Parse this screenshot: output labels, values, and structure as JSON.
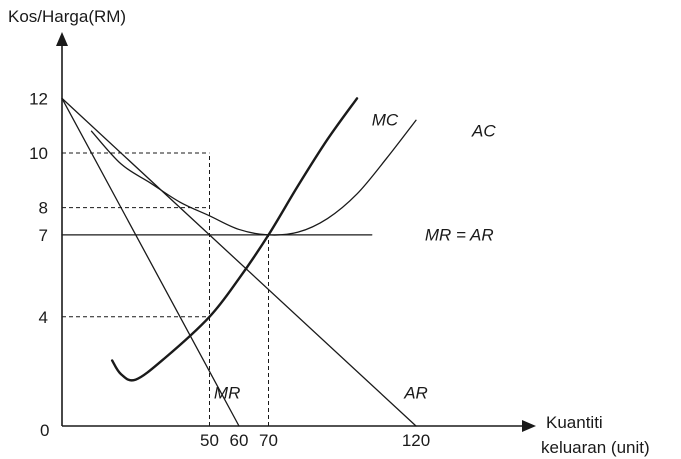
{
  "chart_data": {
    "type": "line",
    "ylabel": "Kos/Harga(RM)",
    "xlabel_lines": [
      "Kuantiti",
      "keluaran (unit)"
    ],
    "origin_label": "0",
    "xlim": [
      0,
      140
    ],
    "ylim": [
      0,
      13
    ],
    "x_ticks": [
      50,
      60,
      70,
      120
    ],
    "x_tick_labels": [
      "50",
      "60",
      "70",
      "120"
    ],
    "y_ticks": [
      4,
      7,
      8,
      10,
      12
    ],
    "y_tick_labels": [
      "4",
      "7",
      "8",
      "10",
      "12"
    ],
    "series": [
      {
        "name": "AR",
        "points": [
          [
            0,
            12
          ],
          [
            120,
            0
          ]
        ]
      },
      {
        "name": "MR",
        "points": [
          [
            0,
            12
          ],
          [
            60,
            0
          ]
        ]
      },
      {
        "name": "MR = AR",
        "points": [
          [
            0,
            7
          ],
          [
            105,
            7
          ]
        ]
      },
      {
        "name": "AC",
        "points": [
          [
            10,
            10.8
          ],
          [
            20,
            9.6
          ],
          [
            30,
            8.9
          ],
          [
            40,
            8.2
          ],
          [
            50,
            7.7
          ],
          [
            60,
            7.2
          ],
          [
            70,
            7
          ],
          [
            80,
            7.1
          ],
          [
            90,
            7.6
          ],
          [
            100,
            8.5
          ],
          [
            110,
            9.8
          ],
          [
            120,
            11.2
          ]
        ]
      },
      {
        "name": "MC",
        "points": [
          [
            17,
            2.4
          ],
          [
            20,
            1.9
          ],
          [
            25,
            1.7
          ],
          [
            35,
            2.5
          ],
          [
            50,
            4
          ],
          [
            60,
            5.4
          ],
          [
            70,
            7
          ],
          [
            80,
            8.8
          ],
          [
            90,
            10.5
          ],
          [
            100,
            12
          ]
        ]
      }
    ],
    "guide_lines": [
      {
        "from": [
          0,
          10
        ],
        "to": [
          50,
          10
        ]
      },
      {
        "from": [
          0,
          8
        ],
        "to": [
          50,
          8
        ]
      },
      {
        "from": [
          0,
          4
        ],
        "to": [
          50,
          4
        ]
      },
      {
        "from": [
          50,
          0
        ],
        "to": [
          50,
          10
        ]
      },
      {
        "from": [
          70,
          0
        ],
        "to": [
          70,
          7
        ]
      }
    ]
  }
}
